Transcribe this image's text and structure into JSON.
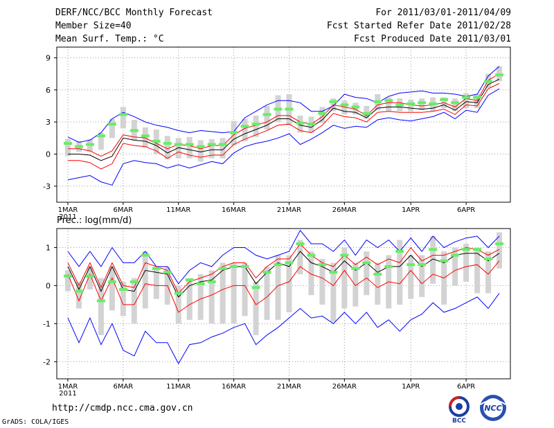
{
  "header": {
    "title": "DERF/NCC/BCC Monthly Forecast",
    "member_size": "Member Size=40",
    "variable": "Mean Surf. Temp.: °C",
    "period": "For 2011/03/01-2011/04/09",
    "refer_date": "Fcst Started Refer Date 2011/02/28",
    "produced_date": "Fcst Produced Date 2011/03/01"
  },
  "footer": {
    "url": "http://cmdp.ncc.cma.gov.cn",
    "grads": "GrADS: COLA/IGES",
    "logo_bcc": "BCC",
    "logo_ncc": "NCC"
  },
  "colors": {
    "ensemble_max_min": "#0000ff",
    "spread": "#ff0000",
    "mean": "#000000",
    "box": "#d3d3d3",
    "median": "#66ee66",
    "grid": "#999999"
  },
  "chart_data": [
    {
      "type": "line",
      "title": "Mean Surf. Temp.: °C",
      "x_ticks": [
        "1MAR",
        "6MAR",
        "11MAR",
        "16MAR",
        "21MAR",
        "26MAR",
        "1APR",
        "6APR"
      ],
      "x_tick_days": [
        1,
        6,
        11,
        16,
        21,
        26,
        32,
        37
      ],
      "year_label": "2011",
      "y_ticks": [
        -3,
        0,
        3,
        6,
        9
      ],
      "ylim": [
        -4.5,
        10
      ],
      "xlim": [
        0,
        41
      ],
      "days": [
        1,
        2,
        3,
        4,
        5,
        6,
        7,
        8,
        9,
        10,
        11,
        12,
        13,
        14,
        15,
        16,
        17,
        18,
        19,
        20,
        21,
        22,
        23,
        24,
        25,
        26,
        27,
        28,
        29,
        30,
        31,
        32,
        33,
        34,
        35,
        36,
        37,
        38,
        39,
        40
      ],
      "series": [
        {
          "name": "max",
          "values": [
            1.6,
            1.1,
            1.3,
            2.0,
            3.3,
            3.9,
            3.5,
            3.0,
            2.7,
            2.5,
            2.2,
            2.0,
            2.2,
            2.1,
            2.0,
            2.1,
            3.4,
            4.0,
            4.6,
            5.0,
            5.0,
            4.8,
            4.0,
            4.0,
            4.5,
            5.6,
            5.3,
            5.2,
            4.8,
            5.4,
            5.7,
            5.8,
            5.9,
            5.7,
            5.7,
            5.6,
            5.4,
            5.6,
            7.3,
            8.2
          ]
        },
        {
          "name": "spread_high",
          "values": [
            0.5,
            0.5,
            0.3,
            -0.2,
            0.3,
            1.8,
            1.6,
            1.5,
            1.0,
            0.5,
            0.9,
            0.8,
            0.5,
            0.8,
            0.8,
            1.8,
            2.4,
            2.7,
            3.0,
            3.6,
            3.6,
            3.0,
            2.8,
            3.5,
            4.6,
            4.4,
            4.2,
            3.6,
            4.6,
            4.8,
            4.8,
            4.6,
            4.5,
            4.6,
            4.8,
            4.4,
            5.2,
            5.0,
            6.9,
            7.5
          ]
        },
        {
          "name": "mean",
          "values": [
            0.0,
            0.0,
            -0.1,
            -0.6,
            -0.2,
            1.5,
            1.3,
            1.2,
            0.8,
            0.1,
            0.6,
            0.4,
            0.2,
            0.4,
            0.4,
            1.4,
            1.9,
            2.3,
            2.7,
            3.3,
            3.3,
            2.7,
            2.5,
            3.2,
            4.3,
            4.0,
            3.9,
            3.4,
            4.3,
            4.4,
            4.4,
            4.3,
            4.2,
            4.3,
            4.6,
            4.1,
            4.9,
            4.8,
            6.5,
            7.0
          ]
        },
        {
          "name": "spread_low",
          "values": [
            -0.6,
            -0.6,
            -0.8,
            -1.4,
            -0.9,
            1.0,
            0.8,
            0.7,
            0.3,
            -0.4,
            0.2,
            -0.1,
            -0.3,
            -0.1,
            -0.1,
            0.9,
            1.4,
            1.8,
            2.2,
            2.7,
            2.8,
            2.2,
            2.0,
            2.7,
            3.8,
            3.5,
            3.4,
            3.0,
            3.9,
            4.0,
            3.9,
            3.9,
            3.9,
            4.0,
            4.2,
            3.7,
            4.6,
            4.5,
            6.1,
            6.6
          ]
        },
        {
          "name": "min",
          "values": [
            -2.4,
            -2.2,
            -2.0,
            -2.6,
            -2.9,
            -0.9,
            -0.6,
            -0.8,
            -0.9,
            -1.3,
            -1.0,
            -1.3,
            -1.0,
            -0.7,
            -0.9,
            0.1,
            0.7,
            1.0,
            1.2,
            1.5,
            1.9,
            0.9,
            1.4,
            2.0,
            2.7,
            2.4,
            2.6,
            2.5,
            3.2,
            3.4,
            3.2,
            3.1,
            3.3,
            3.5,
            3.9,
            3.3,
            4.1,
            3.9,
            5.5,
            6.1
          ]
        },
        {
          "name": "median",
          "values": [
            1.0,
            0.7,
            0.9,
            1.7,
            2.8,
            3.7,
            2.2,
            1.7,
            1.2,
            1.0,
            0.9,
            0.9,
            0.7,
            0.9,
            0.9,
            2.0,
            2.6,
            2.8,
            3.7,
            4.2,
            4.2,
            2.9,
            2.8,
            3.8,
            4.9,
            4.6,
            4.4,
            3.8,
            4.9,
            5.0,
            4.6,
            4.7,
            4.8,
            4.7,
            5.1,
            4.8,
            5.3,
            5.3,
            6.8,
            7.4
          ]
        },
        {
          "name": "box_high",
          "values": [
            1.4,
            1.2,
            1.4,
            2.0,
            3.3,
            4.4,
            3.2,
            2.5,
            2.3,
            1.7,
            1.5,
            1.6,
            1.3,
            1.4,
            1.5,
            3.1,
            3.3,
            3.6,
            4.5,
            5.5,
            5.6,
            3.6,
            3.5,
            4.4,
            5.2,
            5.0,
            4.8,
            4.5,
            5.6,
            5.3,
            5.2,
            5.1,
            5.2,
            5.3,
            5.3,
            5.2,
            5.7,
            5.6,
            7.5,
            8.2
          ]
        },
        {
          "name": "box_low",
          "values": [
            -0.2,
            0.2,
            0.2,
            0.4,
            1.5,
            2.4,
            1.3,
            0.6,
            0.0,
            -0.5,
            -0.4,
            -0.4,
            -0.7,
            -0.4,
            -0.4,
            0.8,
            1.2,
            1.6,
            2.3,
            3.0,
            2.7,
            2.0,
            2.0,
            2.9,
            4.0,
            3.7,
            3.7,
            3.3,
            4.1,
            4.0,
            4.0,
            4.0,
            4.1,
            4.0,
            4.3,
            4.0,
            4.3,
            4.3,
            6.2,
            6.8
          ]
        }
      ]
    },
    {
      "type": "line",
      "title": "Prec.: log(mm/d)",
      "x_ticks": [
        "1MAR",
        "6MAR",
        "11MAR",
        "16MAR",
        "21MAR",
        "26MAR",
        "1APR",
        "6APR"
      ],
      "x_tick_days": [
        1,
        6,
        11,
        16,
        21,
        26,
        32,
        37
      ],
      "year_label": "2011",
      "y_ticks": [
        -2,
        -1,
        0,
        1
      ],
      "ylim": [
        -2.45,
        1.5
      ],
      "xlim": [
        0,
        41
      ],
      "days": [
        1,
        2,
        3,
        4,
        5,
        6,
        7,
        8,
        9,
        10,
        11,
        12,
        13,
        14,
        15,
        16,
        17,
        18,
        19,
        20,
        21,
        22,
        23,
        24,
        25,
        26,
        27,
        28,
        29,
        30,
        31,
        32,
        33,
        34,
        35,
        36,
        37,
        38,
        39,
        40
      ],
      "series": [
        {
          "name": "max",
          "values": [
            0.9,
            0.5,
            0.9,
            0.5,
            1.0,
            0.6,
            0.6,
            0.9,
            0.5,
            0.5,
            0.05,
            0.4,
            0.6,
            0.5,
            0.8,
            1.0,
            1.0,
            0.8,
            0.7,
            0.8,
            0.9,
            1.45,
            1.1,
            1.1,
            0.9,
            1.2,
            0.8,
            1.2,
            1.0,
            1.2,
            0.9,
            1.25,
            0.9,
            1.3,
            1.0,
            1.15,
            1.25,
            1.3,
            1.0,
            1.3
          ]
        },
        {
          "name": "spread_high",
          "values": [
            0.6,
            0.0,
            0.6,
            -0.05,
            0.6,
            0.0,
            -0.05,
            0.6,
            0.5,
            0.4,
            -0.2,
            0.1,
            0.2,
            0.3,
            0.5,
            0.6,
            0.6,
            0.2,
            0.5,
            0.7,
            0.7,
            1.1,
            0.8,
            0.6,
            0.5,
            0.8,
            0.55,
            0.75,
            0.55,
            0.7,
            0.6,
            1.0,
            0.65,
            0.8,
            0.8,
            0.9,
            1.0,
            0.95,
            0.8,
            0.95
          ]
        },
        {
          "name": "mean",
          "values": [
            0.5,
            -0.1,
            0.5,
            -0.15,
            0.5,
            -0.1,
            -0.15,
            0.4,
            0.35,
            0.3,
            -0.3,
            0.0,
            0.1,
            0.15,
            0.4,
            0.5,
            0.5,
            0.05,
            0.35,
            0.6,
            0.5,
            0.9,
            0.6,
            0.5,
            0.35,
            0.65,
            0.4,
            0.6,
            0.35,
            0.5,
            0.5,
            0.8,
            0.5,
            0.7,
            0.6,
            0.8,
            0.85,
            0.85,
            0.65,
            0.85
          ]
        },
        {
          "name": "spread_low",
          "values": [
            0.3,
            -0.4,
            0.3,
            -0.4,
            0.2,
            -0.5,
            -0.5,
            0.05,
            0.0,
            0.0,
            -0.7,
            -0.5,
            -0.35,
            -0.25,
            -0.1,
            0.0,
            0.0,
            -0.5,
            -0.3,
            0.0,
            0.1,
            0.5,
            0.3,
            0.2,
            0.0,
            0.4,
            0.0,
            0.2,
            -0.05,
            0.1,
            0.05,
            0.4,
            0.05,
            0.3,
            0.2,
            0.4,
            0.5,
            0.55,
            0.3,
            0.65
          ]
        },
        {
          "name": "min",
          "values": [
            -0.85,
            -1.5,
            -0.85,
            -1.55,
            -1.0,
            -1.7,
            -1.85,
            -1.2,
            -1.5,
            -1.5,
            -2.05,
            -1.55,
            -1.5,
            -1.35,
            -1.25,
            -1.1,
            -1.0,
            -1.55,
            -1.3,
            -1.1,
            -0.85,
            -0.6,
            -0.85,
            -0.8,
            -1.0,
            -0.7,
            -1.0,
            -0.7,
            -1.1,
            -0.9,
            -1.2,
            -0.9,
            -0.75,
            -0.45,
            -0.7,
            -0.6,
            -0.45,
            -0.3,
            -0.6,
            -0.2
          ]
        },
        {
          "name": "median",
          "values": [
            0.25,
            -0.15,
            0.25,
            -0.4,
            0.1,
            -0.1,
            0.1,
            0.8,
            0.45,
            0.35,
            -0.2,
            0.15,
            0.05,
            0.1,
            0.45,
            0.5,
            0.5,
            -0.05,
            0.35,
            0.55,
            0.6,
            1.1,
            0.8,
            0.55,
            0.35,
            0.8,
            0.45,
            0.6,
            0.3,
            0.5,
            0.9,
            0.55,
            0.55,
            0.95,
            0.65,
            0.8,
            0.95,
            0.95,
            0.7,
            1.1
          ]
        },
        {
          "name": "box_high",
          "values": [
            0.4,
            0.1,
            0.5,
            0.2,
            0.5,
            0.1,
            0.2,
            0.9,
            0.5,
            0.5,
            0.0,
            0.2,
            0.3,
            0.4,
            0.6,
            0.6,
            0.6,
            0.1,
            0.5,
            0.8,
            0.8,
            1.2,
            0.9,
            0.7,
            0.6,
            1.0,
            0.6,
            0.9,
            0.6,
            0.8,
            1.2,
            0.8,
            0.8,
            1.3,
            0.9,
            1.0,
            1.1,
            1.0,
            0.9,
            1.4
          ]
        },
        {
          "name": "box_low",
          "values": [
            -0.15,
            -0.6,
            -0.1,
            -1.3,
            -0.65,
            -0.8,
            -1.0,
            -0.6,
            -0.35,
            -0.5,
            -1.0,
            -0.9,
            -0.9,
            -1.0,
            -1.0,
            -1.0,
            -0.8,
            -1.3,
            -0.9,
            -0.9,
            -0.7,
            0.3,
            -0.25,
            -0.5,
            -0.95,
            -0.6,
            -0.55,
            -0.25,
            -0.5,
            -0.6,
            -0.5,
            -0.35,
            -0.3,
            0.05,
            -0.5,
            0.0,
            0.1,
            -0.2,
            -0.2,
            0.45
          ]
        }
      ]
    }
  ]
}
